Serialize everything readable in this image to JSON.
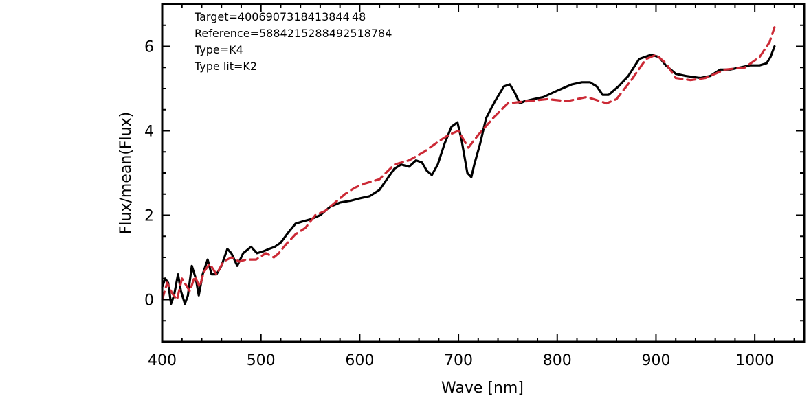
{
  "chart_data": {
    "type": "line",
    "xlabel": "Wave [nm]",
    "ylabel": "Flux/mean(Flux)",
    "xlim": [
      400,
      1050
    ],
    "ylim": [
      -1,
      7
    ],
    "xticks": [
      400,
      500,
      600,
      700,
      800,
      900,
      1000
    ],
    "yticks": [
      0,
      2,
      4,
      6
    ],
    "grid": false,
    "annotations": [
      "Target=4006907318413844 48",
      "Reference=5884215288492518784",
      "Type=K4",
      "Type lit=K2"
    ],
    "series": [
      {
        "color": "#000000",
        "style": "solid",
        "x": [
          400,
          403,
          406,
          409,
          412,
          416,
          419,
          423,
          426,
          430,
          434,
          437,
          441,
          446,
          450,
          455,
          460,
          466,
          470,
          476,
          482,
          490,
          496,
          503,
          508,
          514,
          520,
          528,
          535,
          542,
          550,
          560,
          570,
          580,
          592,
          600,
          610,
          620,
          626,
          635,
          642,
          650,
          657,
          663,
          668,
          673,
          679,
          686,
          693,
          699,
          703,
          709,
          713,
          716,
          722,
          728,
          737,
          746,
          752,
          757,
          762,
          767,
          776,
          786,
          800,
          810,
          815,
          825,
          833,
          840,
          846,
          852,
          862,
          872,
          883,
          895,
          903,
          910,
          920,
          930,
          945,
          955,
          965,
          975,
          985,
          995,
          1005,
          1012,
          1016,
          1020
        ],
        "y": [
          0.3,
          0.5,
          0.4,
          -0.1,
          0.1,
          0.6,
          0.2,
          -0.1,
          0.1,
          0.8,
          0.5,
          0.1,
          0.6,
          0.95,
          0.6,
          0.6,
          0.8,
          1.2,
          1.1,
          0.8,
          1.1,
          1.25,
          1.1,
          1.15,
          1.2,
          1.25,
          1.35,
          1.6,
          1.8,
          1.85,
          1.9,
          2.0,
          2.2,
          2.3,
          2.35,
          2.4,
          2.45,
          2.6,
          2.8,
          3.1,
          3.2,
          3.15,
          3.3,
          3.25,
          3.05,
          2.95,
          3.2,
          3.7,
          4.1,
          4.2,
          3.8,
          3.0,
          2.9,
          3.2,
          3.7,
          4.3,
          4.7,
          5.05,
          5.1,
          4.9,
          4.65,
          4.7,
          4.75,
          4.8,
          4.95,
          5.05,
          5.1,
          5.15,
          5.15,
          5.05,
          4.85,
          4.85,
          5.05,
          5.3,
          5.7,
          5.8,
          5.75,
          5.55,
          5.35,
          5.3,
          5.25,
          5.3,
          5.45,
          5.45,
          5.5,
          5.55,
          5.55,
          5.6,
          5.75,
          6.0
        ]
      },
      {
        "color": "#cc2a36",
        "style": "dashed",
        "x": [
          400,
          405,
          410,
          415,
          420,
          428,
          433,
          438,
          442,
          448,
          455,
          462,
          470,
          478,
          485,
          495,
          505,
          513,
          518,
          525,
          535,
          545,
          555,
          565,
          575,
          585,
          595,
          605,
          620,
          635,
          650,
          665,
          680,
          690,
          700,
          710,
          720,
          735,
          750,
          770,
          790,
          810,
          830,
          850,
          860,
          875,
          890,
          900,
          910,
          920,
          935,
          950,
          970,
          990,
          1005,
          1015,
          1020
        ],
        "y": [
          0.0,
          0.4,
          0.15,
          0.0,
          0.5,
          0.2,
          0.55,
          0.3,
          0.65,
          0.85,
          0.6,
          0.9,
          1.0,
          0.9,
          0.95,
          0.95,
          1.1,
          1.0,
          1.1,
          1.3,
          1.55,
          1.7,
          2.0,
          2.1,
          2.3,
          2.5,
          2.65,
          2.75,
          2.85,
          3.2,
          3.3,
          3.5,
          3.75,
          3.9,
          4.0,
          3.6,
          3.9,
          4.3,
          4.65,
          4.7,
          4.75,
          4.7,
          4.8,
          4.65,
          4.75,
          5.2,
          5.7,
          5.8,
          5.6,
          5.25,
          5.2,
          5.25,
          5.45,
          5.5,
          5.75,
          6.1,
          6.45
        ]
      }
    ]
  }
}
